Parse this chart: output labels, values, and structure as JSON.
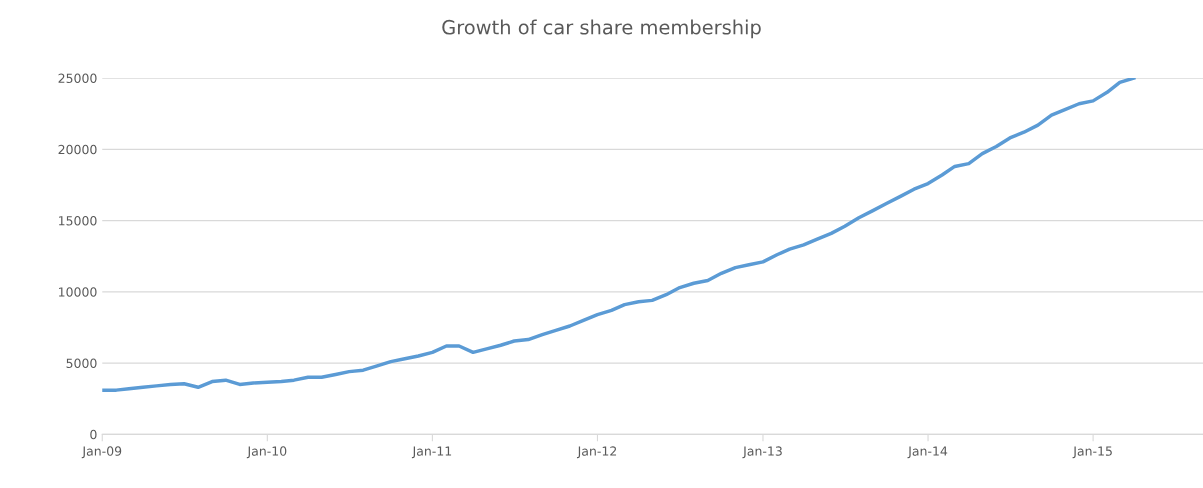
{
  "chart_data": {
    "type": "line",
    "title": "Growth of car share membership",
    "x": [
      "2009-01",
      "2009-02",
      "2009-03",
      "2009-04",
      "2009-05",
      "2009-06",
      "2009-07",
      "2009-08",
      "2009-09",
      "2009-10",
      "2009-11",
      "2009-12",
      "2010-01",
      "2010-02",
      "2010-03",
      "2010-04",
      "2010-05",
      "2010-06",
      "2010-07",
      "2010-08",
      "2010-09",
      "2010-10",
      "2010-11",
      "2010-12",
      "2011-01",
      "2011-02",
      "2011-03",
      "2011-04",
      "2011-05",
      "2011-06",
      "2011-07",
      "2011-08",
      "2011-09",
      "2011-10",
      "2011-11",
      "2011-12",
      "2012-01",
      "2012-02",
      "2012-03",
      "2012-04",
      "2012-05",
      "2012-06",
      "2012-07",
      "2012-08",
      "2012-09",
      "2012-10",
      "2012-11",
      "2012-12",
      "2013-01",
      "2013-02",
      "2013-03",
      "2013-04",
      "2013-05",
      "2013-06",
      "2013-07",
      "2013-08",
      "2013-09",
      "2013-10",
      "2013-11",
      "2013-12",
      "2014-01",
      "2014-02",
      "2014-03",
      "2014-04",
      "2014-05",
      "2014-06",
      "2014-07",
      "2014-08",
      "2014-09",
      "2014-10",
      "2014-11",
      "2014-12",
      "2015-01",
      "2015-02",
      "2015-03",
      "2015-04"
    ],
    "series": [
      {
        "color": "#5b9bd5",
        "values": [
          3100,
          3100,
          3200,
          3300,
          3400,
          3500,
          3550,
          3300,
          3700,
          3800,
          3500,
          3600,
          3650,
          3700,
          3800,
          4000,
          4000,
          4200,
          4400,
          4500,
          4800,
          5100,
          5300,
          5500,
          5750,
          6200,
          6200,
          5750,
          6000,
          6250,
          6550,
          6650,
          7000,
          7300,
          7600,
          8000,
          8400,
          8700,
          9100,
          9300,
          9400,
          9800,
          10300,
          10600,
          10800,
          11300,
          11700,
          11900,
          12100,
          12600,
          13000,
          13300,
          13700,
          14100,
          14600,
          15200,
          15700,
          16200,
          16700,
          17200,
          17600,
          18200,
          18800,
          19000,
          19700,
          20200,
          20800,
          21200,
          21700,
          22400,
          22800,
          23200,
          23400,
          24000,
          24700,
          25000
        ]
      }
    ],
    "xlim": [
      "2009-01-01",
      "2015-09-01"
    ],
    "xticks": [
      {
        "value": "2009-01-01",
        "label": "Jan-09"
      },
      {
        "value": "2010-01-01",
        "label": "Jan-10"
      },
      {
        "value": "2011-01-01",
        "label": "Jan-11"
      },
      {
        "value": "2012-01-01",
        "label": "Jan-12"
      },
      {
        "value": "2013-01-01",
        "label": "Jan-13"
      },
      {
        "value": "2014-01-01",
        "label": "Jan-14"
      },
      {
        "value": "2015-01-01",
        "label": "Jan-15"
      }
    ],
    "ylim": [
      0,
      25000
    ],
    "yticks": [
      0,
      5000,
      10000,
      15000,
      20000,
      25000
    ],
    "grid": "y",
    "line_style": "solid"
  }
}
